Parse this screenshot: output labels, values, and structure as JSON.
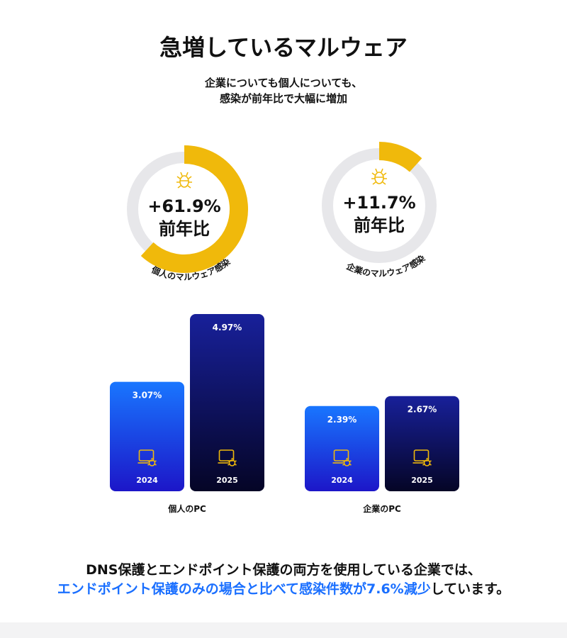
{
  "header": {
    "title": "急増しているマルウェア",
    "subtitle": [
      "企業についても個人についても、",
      "感染が前年比で大幅に増加"
    ]
  },
  "chart_data": [
    {
      "type": "donut",
      "values": [
        61.9
      ],
      "value_labels": [
        "+61.9%"
      ],
      "caption": "前年比",
      "label": "個人のマルウェア感染",
      "color": "#f0b90b",
      "track_color": "#e7e7ea"
    },
    {
      "type": "donut",
      "values": [
        11.7
      ],
      "value_labels": [
        "+11.7%"
      ],
      "caption": "前年比",
      "label": "企業のマルウェア感染",
      "color": "#f0b90b",
      "track_color": "#e7e7ea"
    },
    {
      "type": "bar",
      "title": "個人のPC",
      "categories": [
        "2024",
        "2025"
      ],
      "values": [
        3.07,
        4.97
      ],
      "value_labels": [
        "3.07%",
        "4.97%"
      ]
    },
    {
      "type": "bar",
      "title": "企業のPC",
      "categories": [
        "2024",
        "2025"
      ],
      "values": [
        2.39,
        2.67
      ],
      "value_labels": [
        "2.39%",
        "2.67%"
      ]
    }
  ],
  "footer": {
    "line1": "DNS保護とエンドポイント保護の両方を使用している企業では、",
    "highlight": "エンドポイント保護のみの場合と比べて感染件数が7.6%減少",
    "rest": "しています。"
  }
}
